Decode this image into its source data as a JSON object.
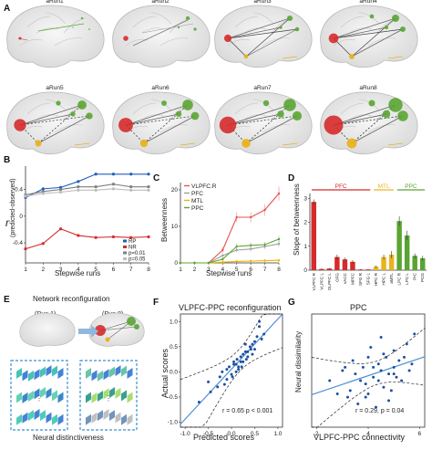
{
  "panels": {
    "A": {
      "letter": "A",
      "runs": [
        "aRun1",
        "aRun2",
        "aRun3",
        "aRun4",
        "aRun5",
        "aRun6",
        "aRun7",
        "aRun8"
      ]
    },
    "B": {
      "letter": "B",
      "ylabel": "r",
      "ylabel_sub": "(predicted-observed)",
      "xlabel": "Stepwise runs",
      "yticks": [
        "0.4",
        "0",
        "-0.4"
      ],
      "legend": [
        "RP",
        "NR",
        "p=0.01",
        "p=0.05"
      ]
    },
    "C": {
      "letter": "C",
      "ylabel": "Betweenness",
      "xlabel": "Stepwise runs",
      "yticks": [
        "20",
        "10",
        "0"
      ]
    },
    "D": {
      "letter": "D",
      "ylabel": "Slope of betweenness",
      "yticks": [
        "3",
        "2",
        "1",
        "0"
      ],
      "groups": [
        "PFC",
        "MTL",
        "PPC"
      ]
    },
    "E": {
      "letter": "E",
      "title": "Network reconfiguration",
      "run_left": "(Run 1)",
      "run_right": "(Run 8)",
      "caption": "Neural distinctiveness",
      "dots": "⋮"
    },
    "F": {
      "letter": "F",
      "title": "VLPFC-PPC reconfiguration",
      "xlabel": "Predicted scores",
      "ylabel": "Actual scores",
      "stat": "r = 0.65 p < 0.001",
      "xticks": [
        "-1.0",
        "-0.5",
        "0.0",
        "0.5",
        "1.0"
      ],
      "yticks": [
        "1.0",
        "0.5",
        "0.0",
        "-0.5",
        "-1.0"
      ]
    },
    "G": {
      "letter": "G",
      "title": "PPC",
      "xlabel": "VLPFC-PPC connectivity",
      "ylabel": "Neural dissimilarity",
      "stat": "r = 0.29, p = 0.04",
      "xticks": [
        "2",
        "4",
        "6"
      ]
    }
  },
  "colors": {
    "pfc": "#d62b2b",
    "mtl": "#e9b320",
    "ppc": "#5aa532",
    "blue": "#1f5fbf",
    "gray": "#8a8a8a",
    "fit": "#4d8fd6"
  },
  "chart_data": [
    {
      "type": "line",
      "panel": "B",
      "x": [
        1,
        2,
        3,
        4,
        5,
        6,
        7,
        8
      ],
      "series": [
        {
          "name": "RP",
          "color": "#1f5fbf",
          "values": [
            0.28,
            0.41,
            0.43,
            0.52,
            0.63,
            0.63,
            0.63,
            0.63
          ]
        },
        {
          "name": "NR",
          "color": "#d62b2b",
          "values": [
            -0.49,
            -0.41,
            -0.19,
            -0.29,
            -0.32,
            -0.31,
            -0.32,
            -0.31
          ]
        },
        {
          "name": "",
          "color": "#7f7f7f",
          "values": [
            0.32,
            0.37,
            0.4,
            0.44,
            0.44,
            0.48,
            0.44,
            0.44
          ]
        },
        {
          "name": "",
          "color": "#bdbdbd",
          "values": [
            0.3,
            0.34,
            0.36,
            0.39,
            0.39,
            0.41,
            0.39,
            0.39
          ]
        }
      ],
      "xlim": [
        1,
        8
      ],
      "ylim": [
        -0.7,
        0.75
      ]
    },
    {
      "type": "line",
      "panel": "C",
      "x": [
        1,
        2,
        3,
        4,
        5,
        6,
        7,
        8
      ],
      "series": [
        {
          "name": "VLPFC.R",
          "color": "#e8534f",
          "values": [
            0,
            0,
            0,
            3.5,
            12.5,
            12.5,
            14.5,
            19
          ]
        },
        {
          "name": "PFC",
          "color": "#9e9e9e",
          "values": [
            0,
            0,
            0,
            2.0,
            3.5,
            3.8,
            4.5,
            5.2
          ]
        },
        {
          "name": "MTL",
          "color": "#f0b400",
          "values": [
            0,
            0,
            0,
            0.2,
            0.4,
            0.5,
            0.6,
            0.7
          ]
        },
        {
          "name": "PPC",
          "color": "#5aa532",
          "values": [
            0,
            0,
            0,
            1.0,
            4.5,
            4.8,
            5.0,
            6.5
          ]
        }
      ],
      "xlim": [
        1,
        8
      ],
      "ylim": [
        0,
        22
      ]
    },
    {
      "type": "bar",
      "panel": "D",
      "categories": [
        "VLPFC R",
        "VLPFC L",
        "DLPFC L",
        "OFG",
        "vACC",
        "MPFC",
        "SFG R",
        "SFG L",
        "HPC R",
        "HPC L",
        "aMTL",
        "LPC R",
        "LPC L",
        "PrC",
        "PCG"
      ],
      "values": [
        2.85,
        0.05,
        0.07,
        0.55,
        0.45,
        0.35,
        0.03,
        0.03,
        0.15,
        0.55,
        0.65,
        2.05,
        1.45,
        0.6,
        0.5
      ],
      "errors": [
        0.1,
        0.02,
        0.02,
        0.1,
        0.08,
        0.07,
        0.02,
        0.02,
        0.05,
        0.1,
        0.15,
        0.2,
        0.2,
        0.1,
        0.1
      ],
      "colors": [
        "#d62b2b",
        "#d62b2b",
        "#d62b2b",
        "#d62b2b",
        "#d62b2b",
        "#d62b2b",
        "#d62b2b",
        "#d62b2b",
        "#e9b320",
        "#e9b320",
        "#e9b320",
        "#5aa532",
        "#5aa532",
        "#5aa532",
        "#5aa532"
      ],
      "ylim": [
        0,
        3.2
      ]
    },
    {
      "type": "scatter",
      "panel": "F",
      "x": [
        -0.7,
        -0.5,
        -0.45,
        -0.3,
        -0.25,
        -0.2,
        -0.15,
        -0.1,
        -0.05,
        0.0,
        0.05,
        0.1,
        0.12,
        0.15,
        0.2,
        0.22,
        0.25,
        0.3,
        0.32,
        0.35,
        0.4,
        0.42,
        0.45,
        0.5,
        0.55,
        0.6,
        0.65,
        0.7,
        0.1,
        0.2,
        0.3,
        0.05,
        -0.1,
        0.35,
        0.45,
        0.25,
        0.15,
        0.5,
        0.6,
        0.02
      ],
      "y": [
        -0.6,
        -0.2,
        -0.4,
        -0.3,
        -0.1,
        0.0,
        -0.25,
        0.05,
        0.1,
        -0.05,
        0.2,
        0.15,
        0.25,
        0.05,
        0.3,
        0.1,
        0.35,
        0.4,
        0.25,
        0.3,
        0.5,
        0.45,
        0.35,
        0.6,
        0.7,
        0.9,
        0.65,
        0.75,
        0.0,
        0.2,
        0.55,
        0.15,
        -0.15,
        0.4,
        0.55,
        0.2,
        0.1,
        0.45,
        1.0,
        -0.1
      ],
      "xlim": [
        -1.1,
        1.1
      ],
      "ylim": [
        -1.1,
        1.15
      ]
    },
    {
      "type": "scatter",
      "panel": "G",
      "x": [
        2.5,
        3.0,
        3.2,
        3.4,
        3.5,
        3.6,
        3.8,
        3.9,
        4.0,
        4.0,
        4.1,
        4.2,
        4.3,
        4.4,
        4.5,
        4.5,
        4.6,
        4.7,
        4.8,
        4.9,
        5.0,
        5.0,
        5.1,
        5.2,
        5.3,
        5.5,
        5.6,
        5.8,
        3.3,
        3.7,
        4.2,
        4.6,
        4.8,
        5.4,
        3.1,
        3.9,
        4.4,
        5.0,
        2.8,
        5.7
      ],
      "y": [
        0.2,
        0.5,
        -0.3,
        0.8,
        0.4,
        -0.5,
        0.6,
        0.1,
        -0.2,
        0.9,
        1.2,
        0.3,
        -0.6,
        0.7,
        0.5,
        1.5,
        0.0,
        0.9,
        0.4,
        -0.1,
        0.6,
        1.1,
        0.3,
        0.8,
        0.2,
        1.3,
        0.5,
        1.6,
        -0.1,
        0.2,
        0.6,
        1.0,
        -0.4,
        0.9,
        0.6,
        -0.3,
        0.2,
        0.4,
        -0.2,
        0.7
      ],
      "xlim": [
        1.8,
        6.2
      ],
      "ylim": [
        -1.2,
        2.2
      ]
    }
  ]
}
